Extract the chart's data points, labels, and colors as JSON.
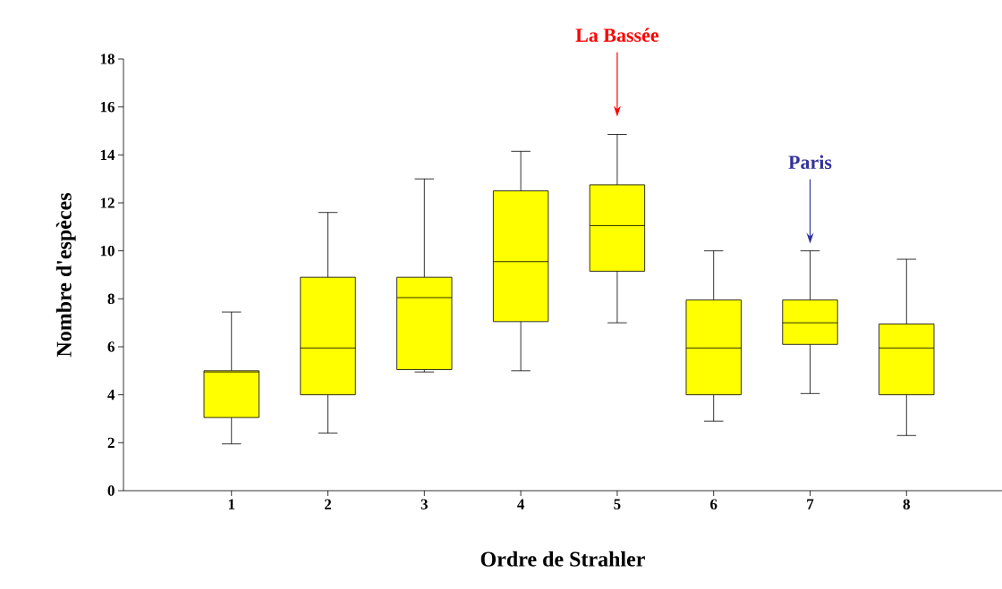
{
  "chart_data": {
    "type": "box",
    "xlabel": "Ordre de Strahler",
    "ylabel": "Nombre d'espèces",
    "categories": [
      "1",
      "2",
      "3",
      "4",
      "5",
      "6",
      "7",
      "8"
    ],
    "series": [
      {
        "color": "#ffff00",
        "boxes": [
          {
            "low": 1.95,
            "q1": 3.05,
            "median": 4.95,
            "q3": 5.0,
            "high": 7.45
          },
          {
            "low": 2.4,
            "q1": 4.0,
            "median": 5.95,
            "q3": 8.9,
            "high": 11.6
          },
          {
            "low": 4.95,
            "q1": 5.05,
            "median": 8.05,
            "q3": 8.9,
            "high": 13.0
          },
          {
            "low": 5.0,
            "q1": 7.05,
            "median": 9.55,
            "q3": 12.5,
            "high": 14.15
          },
          {
            "low": 7.0,
            "q1": 9.15,
            "median": 11.05,
            "q3": 12.75,
            "high": 14.85
          },
          {
            "low": 2.9,
            "q1": 4.0,
            "median": 5.95,
            "q3": 7.95,
            "high": 10.0
          },
          {
            "low": 4.05,
            "q1": 6.1,
            "median": 7.0,
            "q3": 7.95,
            "high": 10.0
          },
          {
            "low": 2.3,
            "q1": 4.0,
            "median": 5.95,
            "q3": 6.95,
            "high": 9.65
          }
        ]
      }
    ],
    "ylim": [
      0,
      18
    ],
    "yticks": [
      0,
      2,
      4,
      6,
      8,
      10,
      12,
      14,
      16,
      18
    ],
    "annotations": [
      "La Bassée",
      "Paris"
    ]
  }
}
